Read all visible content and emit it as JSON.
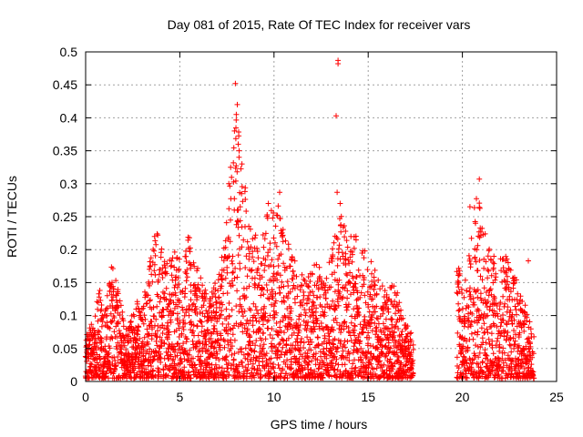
{
  "chart_data": {
    "type": "scatter",
    "title": "Day 081 of 2015, Rate Of TEC Index for receiver vars",
    "xlabel": "GPS time / hours",
    "ylabel": "ROTI / TECUs",
    "xlim": [
      0,
      25
    ],
    "ylim": [
      0,
      0.5
    ],
    "x_ticks": [
      "0",
      "5",
      "10",
      "15",
      "20",
      "25"
    ],
    "y_ticks": [
      "0",
      "0.05",
      "0.1",
      "0.15",
      "0.2",
      "0.25",
      "0.3",
      "0.35",
      "0.4",
      "0.45",
      "0.5"
    ],
    "grid": true,
    "marker": "+",
    "color": "#ff0000",
    "series": [
      {
        "name": "ROTI",
        "envelope": [
          {
            "x": 0.0,
            "y": 0.07
          },
          {
            "x": 0.3,
            "y": 0.09
          },
          {
            "x": 0.7,
            "y": 0.15
          },
          {
            "x": 1.0,
            "y": 0.1
          },
          {
            "x": 1.4,
            "y": 0.19
          },
          {
            "x": 1.8,
            "y": 0.13
          },
          {
            "x": 2.2,
            "y": 0.08
          },
          {
            "x": 2.7,
            "y": 0.12
          },
          {
            "x": 3.2,
            "y": 0.14
          },
          {
            "x": 3.7,
            "y": 0.24
          },
          {
            "x": 4.2,
            "y": 0.19
          },
          {
            "x": 4.7,
            "y": 0.2
          },
          {
            "x": 5.2,
            "y": 0.19
          },
          {
            "x": 5.5,
            "y": 0.24
          },
          {
            "x": 6.0,
            "y": 0.17
          },
          {
            "x": 6.5,
            "y": 0.13
          },
          {
            "x": 7.0,
            "y": 0.16
          },
          {
            "x": 7.3,
            "y": 0.2
          },
          {
            "x": 7.6,
            "y": 0.3
          },
          {
            "x": 8.0,
            "y": 0.4
          },
          {
            "x": 8.4,
            "y": 0.33
          },
          {
            "x": 8.8,
            "y": 0.22
          },
          {
            "x": 9.3,
            "y": 0.23
          },
          {
            "x": 9.7,
            "y": 0.26
          },
          {
            "x": 10.2,
            "y": 0.27
          },
          {
            "x": 10.7,
            "y": 0.22
          },
          {
            "x": 11.2,
            "y": 0.18
          },
          {
            "x": 11.7,
            "y": 0.15
          },
          {
            "x": 12.2,
            "y": 0.19
          },
          {
            "x": 12.7,
            "y": 0.15
          },
          {
            "x": 13.2,
            "y": 0.22
          },
          {
            "x": 13.5,
            "y": 0.28
          },
          {
            "x": 13.9,
            "y": 0.22
          },
          {
            "x": 14.4,
            "y": 0.23
          },
          {
            "x": 14.9,
            "y": 0.2
          },
          {
            "x": 15.4,
            "y": 0.17
          },
          {
            "x": 15.9,
            "y": 0.14
          },
          {
            "x": 16.4,
            "y": 0.15
          },
          {
            "x": 16.9,
            "y": 0.1
          },
          {
            "x": 17.4,
            "y": 0.07
          },
          {
            "x": 19.7,
            "y": 0.19
          },
          {
            "x": 20.1,
            "y": 0.14
          },
          {
            "x": 20.5,
            "y": 0.25
          },
          {
            "x": 20.9,
            "y": 0.3
          },
          {
            "x": 21.3,
            "y": 0.21
          },
          {
            "x": 21.8,
            "y": 0.19
          },
          {
            "x": 22.3,
            "y": 0.19
          },
          {
            "x": 22.8,
            "y": 0.16
          },
          {
            "x": 23.3,
            "y": 0.12
          },
          {
            "x": 23.8,
            "y": 0.07
          }
        ],
        "gaps": [
          [
            17.6,
            19.6
          ]
        ],
        "outliers": [
          {
            "x": 7.95,
            "y": 0.452
          },
          {
            "x": 8.05,
            "y": 0.42
          },
          {
            "x": 8.0,
            "y": 0.405
          },
          {
            "x": 7.9,
            "y": 0.38
          },
          {
            "x": 8.1,
            "y": 0.36
          },
          {
            "x": 8.15,
            "y": 0.35
          },
          {
            "x": 7.7,
            "y": 0.325
          },
          {
            "x": 7.6,
            "y": 0.3
          },
          {
            "x": 8.3,
            "y": 0.33
          },
          {
            "x": 13.4,
            "y": 0.487
          },
          {
            "x": 13.4,
            "y": 0.482
          },
          {
            "x": 13.3,
            "y": 0.403
          },
          {
            "x": 13.35,
            "y": 0.287
          },
          {
            "x": 20.9,
            "y": 0.307
          },
          {
            "x": 20.4,
            "y": 0.265
          },
          {
            "x": 10.3,
            "y": 0.287
          },
          {
            "x": 9.7,
            "y": 0.27
          },
          {
            "x": 23.5,
            "y": 0.183
          }
        ]
      }
    ]
  }
}
